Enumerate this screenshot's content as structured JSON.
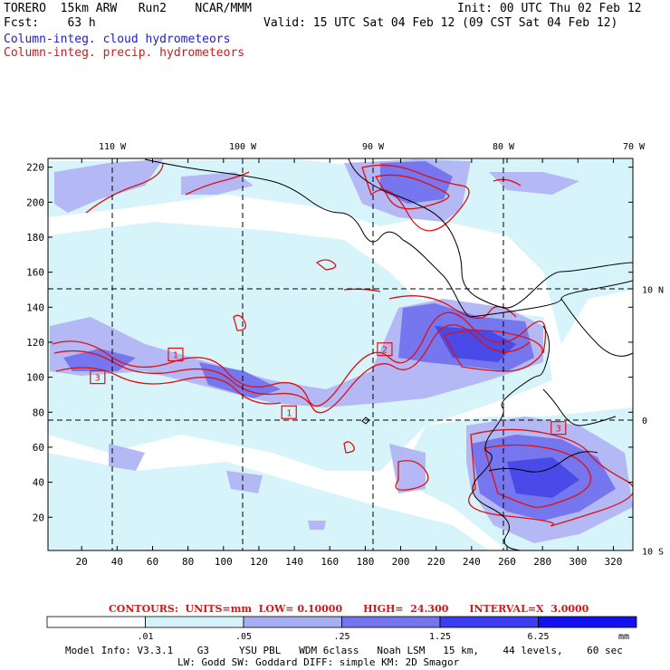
{
  "header": {
    "model_line": "TORERO  15km ARW   Run2    NCAR/MMM",
    "fcst_line": "Fcst:    63 h",
    "init_line": "Init: 00 UTC Thu 02 Feb 12",
    "valid_line": "Valid: 15 UTC Sat 04 Feb 12 (09 CST Sat 04 Feb 12)",
    "field_cloud": "Column-integ. cloud hydrometeors",
    "field_precip": "Column-integ. precip. hydrometeors"
  },
  "map": {
    "top_lon_labels": [
      {
        "text": "110 W",
        "lon": -110
      },
      {
        "text": "100 W",
        "lon": -100
      },
      {
        "text": "90 W",
        "lon": -90
      },
      {
        "text": "80 W",
        "lon": -80
      },
      {
        "text": "70 W",
        "lon": -70
      }
    ],
    "right_lat_labels": [
      {
        "text": "10 N",
        "lat": 10
      },
      {
        "text": "0",
        "lat": 0
      },
      {
        "text": "10 S",
        "lat": -10
      }
    ],
    "y_ticks": [
      "20",
      "40",
      "60",
      "80",
      "100",
      "120",
      "140",
      "160",
      "180",
      "200",
      "220"
    ],
    "x_ticks": [
      "20",
      "40",
      "60",
      "80",
      "100",
      "120",
      "140",
      "160",
      "180",
      "200",
      "220",
      "240",
      "260",
      "280",
      "300",
      "320"
    ],
    "grid_x_range": [
      1,
      331
    ],
    "grid_y_range": [
      1,
      225
    ],
    "box_markers": [
      {
        "label": "3",
        "gx": 29,
        "gy": 100
      },
      {
        "label": "1",
        "gx": 73,
        "gy": 113
      },
      {
        "label": "1",
        "gx": 137,
        "gy": 80
      },
      {
        "label": "2",
        "gx": 191,
        "gy": 116
      },
      {
        "label": "3",
        "gx": 289,
        "gy": 71
      }
    ],
    "colors": {
      "cloud_light": "#d8f4fb",
      "cloud_mid": "#b4b8f4",
      "cloud_dark": "#7676ee",
      "precip": "#e01010",
      "coast": "#000000",
      "grid": "#000000"
    }
  },
  "contours_note": "CONTOURS:  UNITS=mm  LOW= 0.10000      HIGH=  24.300      INTERVAL=X  3.0000",
  "colorbar": {
    "unit": "mm",
    "labels": [
      ".01",
      ".05",
      ".25",
      "1.25",
      "6.25"
    ],
    "colors": [
      "#ffffff",
      "#d4f2fa",
      "#a8aef2",
      "#7474ee",
      "#3c3cf0",
      "#1212f0"
    ]
  },
  "footer": {
    "line1": "Model Info: V3.3.1    G3     YSU PBL   WDM 6class   Noah LSM   15 km,    44 levels,    60 sec",
    "line2": "LW: Godd SW: Goddard DIFF: simple KM: 2D Smagor"
  }
}
